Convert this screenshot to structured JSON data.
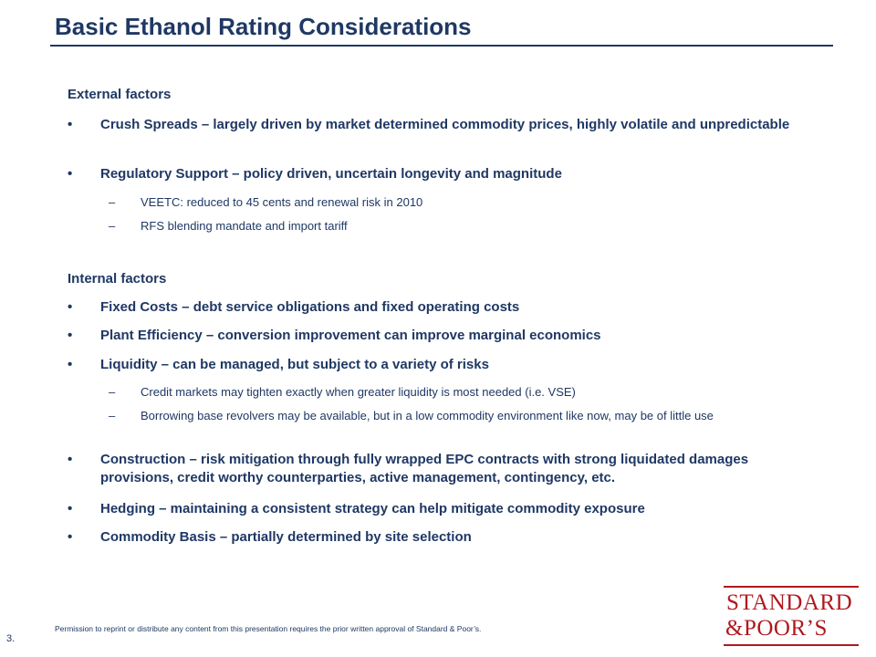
{
  "title": "Basic Ethanol Rating Considerations",
  "sections": {
    "external": {
      "heading": "External factors",
      "bullets": [
        "Crush Spreads – largely driven by market determined commodity prices, highly volatile and unpredictable",
        "Regulatory Support – policy driven, uncertain longevity and magnitude"
      ],
      "subs": [
        "VEETC: reduced to 45 cents and renewal risk in 2010",
        "RFS blending mandate and import tariff"
      ]
    },
    "internal": {
      "heading": "Internal factors",
      "bullets": [
        "Fixed Costs – debt service obligations and fixed operating costs",
        "Plant Efficiency – conversion improvement can improve marginal economics",
        "Liquidity – can be managed, but subject to a variety of risks",
        "Construction – risk mitigation through fully wrapped EPC contracts with strong liquidated damages provisions, credit worthy counterparties, active management, contingency, etc.",
        "Hedging – maintaining a consistent strategy can help mitigate commodity exposure",
        "Commodity Basis – partially determined by site selection"
      ],
      "subs": [
        "Credit markets may tighten exactly when greater liquidity is most needed (i.e. VSE)",
        "Borrowing base revolvers may be available, but in a low commodity environment like now, may be of little use"
      ]
    }
  },
  "markers": {
    "bullet": "•",
    "dash": "–"
  },
  "footer": {
    "page_number": "3.",
    "note": "Permission to reprint or distribute any content from this presentation requires the prior written approval of Standard & Poor’s."
  },
  "logo": {
    "line1": "STANDARD",
    "line2": "&POOR’S",
    "color": "#b0191e"
  },
  "colors": {
    "text": "#1f3864",
    "logo": "#b0191e"
  }
}
